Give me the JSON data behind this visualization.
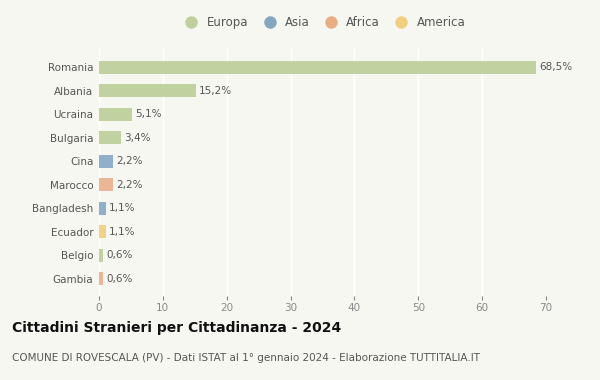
{
  "categories": [
    "Romania",
    "Albania",
    "Ucraina",
    "Bulgaria",
    "Cina",
    "Marocco",
    "Bangladesh",
    "Ecuador",
    "Belgio",
    "Gambia"
  ],
  "values": [
    68.5,
    15.2,
    5.1,
    3.4,
    2.2,
    2.2,
    1.1,
    1.1,
    0.6,
    0.6
  ],
  "labels": [
    "68,5%",
    "15,2%",
    "5,1%",
    "3,4%",
    "2,2%",
    "2,2%",
    "1,1%",
    "1,1%",
    "0,6%",
    "0,6%"
  ],
  "bar_colors": [
    "#b5c98e",
    "#b5c98e",
    "#b5c98e",
    "#b5c98e",
    "#7a9fc2",
    "#e8a882",
    "#7a9fc2",
    "#f0c96e",
    "#b5c98e",
    "#e8a882"
  ],
  "legend_labels": [
    "Europa",
    "Asia",
    "Africa",
    "America"
  ],
  "legend_colors": [
    "#b5c98e",
    "#7099b8",
    "#e8a070",
    "#f0c96e"
  ],
  "xlim": [
    0,
    70
  ],
  "xticks": [
    0,
    10,
    20,
    30,
    40,
    50,
    60,
    70
  ],
  "title": "Cittadini Stranieri per Cittadinanza - 2024",
  "subtitle": "COMUNE DI ROVESCALA (PV) - Dati ISTAT al 1° gennaio 2024 - Elaborazione TUTTITALIA.IT",
  "bg_color": "#f7f7f2",
  "bar_height": 0.55,
  "title_fontsize": 10,
  "subtitle_fontsize": 7.5,
  "label_fontsize": 7.5,
  "tick_fontsize": 7.5,
  "legend_fontsize": 8.5
}
